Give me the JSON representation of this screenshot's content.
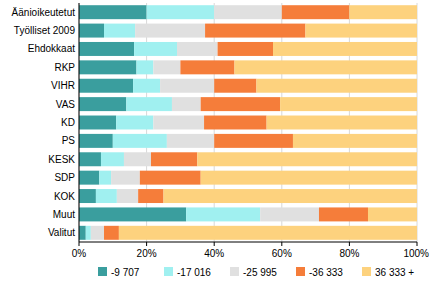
{
  "chart_data": {
    "type": "bar",
    "orientation": "horizontal",
    "stacked": true,
    "grid": true,
    "legend": "bottom",
    "categories": [
      "Äänioikeutetut",
      "Työlliset 2009",
      "Ehdokkaat",
      "RKP",
      "VIHR",
      "VAS",
      "KD",
      "PS",
      "KESK",
      "SDP",
      "KOK",
      "Muut",
      "Valitut"
    ],
    "series": [
      {
        "name": "-9 707",
        "color": "#3a9e9e",
        "values": [
          20,
          7.4,
          16.3,
          17,
          16,
          14,
          11,
          10,
          6.5,
          6,
          5,
          31.7,
          2
        ]
      },
      {
        "name": "-17 016",
        "color": "#a0f0f0",
        "values": [
          20,
          9.2,
          12.7,
          5,
          8,
          13.5,
          11,
          16,
          6.8,
          3.5,
          6.2,
          21.9,
          1.5
        ]
      },
      {
        "name": "-25 995",
        "color": "#e0e0e0",
        "values": [
          20,
          20.7,
          12,
          8,
          16,
          8.5,
          15,
          14,
          8,
          8.5,
          6.3,
          17.4,
          3.9
        ]
      },
      {
        "name": "-36 333",
        "color": "#f57d3a",
        "values": [
          20,
          29.7,
          16.4,
          16,
          12.5,
          23.5,
          18.5,
          23.3,
          13.7,
          18,
          7.5,
          14.5,
          4.4
        ]
      },
      {
        "name": "36 333 +",
        "color": "#fdd27e",
        "values": [
          20,
          33,
          42.6,
          54,
          47.5,
          40.5,
          44.5,
          36.7,
          65,
          64,
          75,
          14.5,
          88.2
        ]
      }
    ],
    "xlim": [
      0,
      100
    ],
    "xticks": [
      {
        "value": 0,
        "label": "0%"
      },
      {
        "value": 20,
        "label": "20%"
      },
      {
        "value": 40,
        "label": "40%"
      },
      {
        "value": 60,
        "label": "60%"
      },
      {
        "value": 80,
        "label": "80%"
      },
      {
        "value": 100,
        "label": "100%"
      }
    ]
  }
}
